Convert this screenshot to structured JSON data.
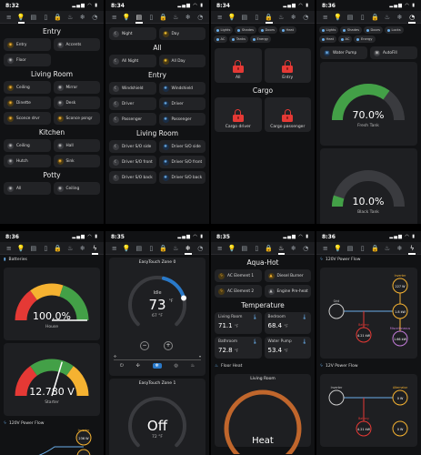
{
  "screens": {
    "s1": {
      "time": "8:32",
      "sections": [
        {
          "title": "Entry",
          "tiles": [
            {
              "label": "Entry",
              "icon": "bulb-icon",
              "tone": "amber"
            },
            {
              "label": "Accents",
              "icon": "bulb-icon",
              "tone": "grey"
            },
            {
              "label": "Floor",
              "icon": "bulb-icon",
              "tone": "grey"
            }
          ]
        },
        {
          "title": "Living Room",
          "tiles": [
            {
              "label": "Ceiling",
              "icon": "bulb-icon",
              "tone": "amber"
            },
            {
              "label": "Mirror",
              "icon": "bulb-icon",
              "tone": "grey"
            },
            {
              "label": "Dinette",
              "icon": "bulb-icon",
              "tone": "amber"
            },
            {
              "label": "Desk",
              "icon": "bulb-icon",
              "tone": "grey"
            },
            {
              "label": "Sconce drvr",
              "icon": "bulb-icon",
              "tone": "amber"
            },
            {
              "label": "Sconce psngr",
              "icon": "bulb-icon",
              "tone": "amber"
            }
          ]
        },
        {
          "title": "Kitchen",
          "tiles": [
            {
              "label": "Ceiling",
              "icon": "bulb-icon",
              "tone": "grey"
            },
            {
              "label": "Hall",
              "icon": "bulb-icon",
              "tone": "grey"
            },
            {
              "label": "Hutch",
              "icon": "bulb-icon",
              "tone": "grey"
            },
            {
              "label": "Sink",
              "icon": "bulb-icon",
              "tone": "amber"
            }
          ]
        },
        {
          "title": "Potty",
          "tiles": [
            {
              "label": "All",
              "icon": "bulb-icon",
              "tone": "grey"
            },
            {
              "label": "Ceiling",
              "icon": "bulb-icon",
              "tone": "grey"
            }
          ]
        }
      ]
    },
    "s2": {
      "time": "8:34",
      "top_tiles": [
        {
          "label": "Night",
          "icon": "moon-icon",
          "tone": "moon"
        },
        {
          "label": "Day",
          "icon": "sun-icon",
          "tone": "sun"
        }
      ],
      "sections": [
        {
          "title": "All",
          "tiles": [
            {
              "label": "All Night",
              "icon": "moon-icon",
              "tone": "moon"
            },
            {
              "label": "All Day",
              "icon": "sun-icon",
              "tone": "sun"
            }
          ]
        },
        {
          "title": "Entry",
          "tiles": [
            {
              "label": "Windshield",
              "icon": "moon-icon",
              "tone": "moon"
            },
            {
              "label": "Windshield",
              "icon": "sun-icon",
              "tone": "blue"
            },
            {
              "label": "Driver",
              "icon": "moon-icon",
              "tone": "moon"
            },
            {
              "label": "Driver",
              "icon": "sun-icon",
              "tone": "blue"
            },
            {
              "label": "Passenger",
              "icon": "moon-icon",
              "tone": "moon"
            },
            {
              "label": "Passenger",
              "icon": "sun-icon",
              "tone": "blue"
            }
          ]
        },
        {
          "title": "Living Room",
          "tiles": [
            {
              "label": "Driver S/O side",
              "icon": "moon-icon",
              "tone": "moon"
            },
            {
              "label": "Driver S/O side",
              "icon": "sun-icon",
              "tone": "blue"
            },
            {
              "label": "Driver S/O front",
              "icon": "moon-icon",
              "tone": "moon"
            },
            {
              "label": "Driver S/O front",
              "icon": "sun-icon",
              "tone": "blue"
            },
            {
              "label": "Driver S/O back",
              "icon": "moon-icon",
              "tone": "moon"
            },
            {
              "label": "Driver S/O back",
              "icon": "sun-icon",
              "tone": "blue"
            }
          ]
        }
      ]
    },
    "s3": {
      "time": "8:34",
      "chips": [
        "Lights",
        "Shades",
        "Doors",
        "Heat",
        "AC",
        "Tanks",
        "Energy"
      ],
      "locks_top": [
        {
          "label": "All"
        },
        {
          "label": "Entry"
        }
      ],
      "section": "Cargo",
      "locks_bottom": [
        {
          "label": "Cargo driver"
        },
        {
          "label": "Cargo passenger"
        }
      ]
    },
    "s4": {
      "time": "8:36",
      "chips": [
        "Lights",
        "Shades",
        "Doors",
        "Locks",
        "Heat",
        "AC",
        "Energy"
      ],
      "pump_label": "Water Pump",
      "autofill_label": "AutoFill",
      "gauges": [
        {
          "value": 70.0,
          "display": "70.0%",
          "label": "Fresh Tank",
          "color": "#43a047"
        },
        {
          "value": 10.0,
          "display": "10.0%",
          "label": "Black Tank",
          "color": "#43a047"
        }
      ]
    },
    "s5": {
      "time": "8:36",
      "header": "Batteries",
      "gauge_house": {
        "value": 100.0,
        "display": "100.0%",
        "label": "House"
      },
      "gauge_starter": {
        "value": 12.78,
        "display": "12.780 V",
        "label": "Starter"
      },
      "flow_header": "120V Power Flow",
      "flow_nodes": [
        {
          "label": "Inverter",
          "value": "236 W"
        },
        {
          "label": "",
          "value": "1.8 kW"
        }
      ]
    },
    "s6": {
      "time": "8:35",
      "zone0": {
        "title": "EasyTouch Zone 0",
        "mode": "Idle",
        "setpoint": "73",
        "unit": "°F",
        "current": "67 °F"
      },
      "zone1": {
        "title": "EasyTouch Zone 1",
        "mode": "Off",
        "current": "72 °F"
      },
      "fan_label": "Fan mode"
    },
    "s7": {
      "time": "8:35",
      "title": "Aqua-Hot",
      "tiles": [
        {
          "label": "AC Element 1",
          "icon": "bolt-icon",
          "tone": "amber"
        },
        {
          "label": "Diesel Burner",
          "icon": "flame-icon",
          "tone": "amber"
        },
        {
          "label": "AC Element 2",
          "icon": "bolt-icon",
          "tone": "amber"
        },
        {
          "label": "Engine Pre-heat",
          "icon": "flame-icon",
          "tone": "grey"
        }
      ],
      "temp_title": "Temperature",
      "temps": [
        {
          "label": "Living Room",
          "value": "71.1",
          "unit": "°F"
        },
        {
          "label": "Bedroom",
          "value": "68.4",
          "unit": "°F"
        },
        {
          "label": "Bathroom",
          "value": "72.8",
          "unit": "°F"
        },
        {
          "label": "Water Pump",
          "value": "53.4",
          "unit": "°F"
        }
      ],
      "floor_header": "Floor Heat",
      "floor_zone": "Living Room",
      "floor_mode": "Heat"
    },
    "s8": {
      "time": "8:36",
      "header_120": "120V Power Flow",
      "header_12": "12V Power Flow",
      "nodes_120": [
        {
          "label": "Grid",
          "value": ""
        },
        {
          "label": "Inverter",
          "value": "227 W"
        },
        {
          "label": "Battery",
          "value": "4.21 kW"
        },
        {
          "label": "",
          "value": "1.8 kW"
        },
        {
          "label": "Miscellaneous",
          "value": "1.66 kW"
        }
      ],
      "nodes_12": [
        {
          "label": "Inverter",
          "value": ""
        },
        {
          "label": "Alternator",
          "value": "0 W"
        },
        {
          "label": "Battery",
          "value": "4.21 kW"
        },
        {
          "label": "",
          "value": "0 W"
        }
      ]
    }
  },
  "colors": {
    "bg": "#111214",
    "tile": "#222326",
    "amber": "#f5b231",
    "blue": "#2979c9",
    "red": "#e53935",
    "green": "#43a047",
    "orange": "#e67e22"
  }
}
